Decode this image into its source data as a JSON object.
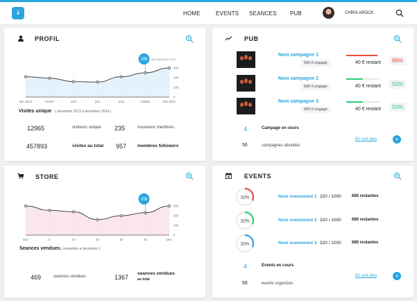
{
  "header": {
    "logo": "↓",
    "nav": [
      "HOME",
      "EVENTS",
      "SEANCES",
      "PUB"
    ],
    "user": "CHRIS AROCK",
    "search_icon": "search-icon"
  },
  "profil": {
    "title": "PROFIL",
    "icon": "user-icon",
    "tooltip_value": "208",
    "tooltip_date": "08 Septembre 2013",
    "chart_caption": "Visites unique",
    "chart_range": "( decembre 2013 a decembre 2014 )",
    "stats": [
      {
        "value": "12965",
        "label": "visiteurs unique",
        "bold": false
      },
      {
        "value": "235",
        "label": "nouveaux membres",
        "bold": false
      },
      {
        "value": "457893",
        "label": "visites au total",
        "bold": true
      },
      {
        "value": "957",
        "label": "membres followers",
        "bold": true
      }
    ]
  },
  "store": {
    "title": "STORE",
    "icon": "cart-icon",
    "tooltip_value": "208",
    "chart_caption": "Seances vendues",
    "chart_range": "( novembre a decembre )",
    "stats": [
      {
        "value": "469",
        "label": "seances vendues",
        "bold": false
      },
      {
        "value": "1367",
        "label": "seances vendues",
        "sublabel": "au total",
        "bold": true
      }
    ]
  },
  "pub": {
    "title": "PUB",
    "icon": "trend-icon",
    "campaigns": [
      {
        "name": "Nom campagne 1",
        "budget": "500 € engagé",
        "remaining": "40 € restant",
        "pct": "96%",
        "fill": 0.96,
        "color": "#e84c3d"
      },
      {
        "name": "Nom campagne 2",
        "budget": "500 € engagé",
        "remaining": "40 € restant",
        "pct": "50%",
        "fill": 0.5,
        "color": "#2ecc71"
      },
      {
        "name": "Nom campagne 3",
        "budget": "500 € engagé",
        "remaining": "40 € restant",
        "pct": "50%",
        "fill": 0.5,
        "color": "#2ecc71"
      }
    ],
    "running_count": "4",
    "running_label": "Campage en cours",
    "done_count": "56",
    "done_label": "campagnes abouties",
    "more_link": "En voir plus",
    "plus": "+"
  },
  "events": {
    "title": "EVENTS",
    "icon": "calendar-icon",
    "items": [
      {
        "pct_label": "32%",
        "fill": 0.32,
        "color": "#e84c3d",
        "name": "Nom evenement 1",
        "count": "320 / 1000",
        "left": "680 restantes"
      },
      {
        "pct_label": "32%",
        "fill": 0.32,
        "color": "#2ecc71",
        "name": "Nom evenement 2",
        "count": "320 / 1000",
        "left": "680 restantes"
      },
      {
        "pct_label": "32%",
        "fill": 0.32,
        "color": "#2aa5e0",
        "name": "Nom evenement 3",
        "count": "320 / 1000",
        "left": "680 restantes"
      }
    ],
    "running_count": "4",
    "running_label": "Events en cours",
    "done_count": "56",
    "done_label": "events organizes",
    "more_link": "En voir plus",
    "plus": "+"
  },
  "chart_data": [
    {
      "type": "area",
      "title": "Visites unique",
      "categories": [
        "Dec 2013",
        "Fevrier",
        "avril",
        "juin",
        "aout",
        "octobre",
        "Dec 2014"
      ],
      "values": [
        210,
        195,
        160,
        155,
        210,
        250,
        300
      ],
      "ylim": [
        0,
        300
      ],
      "yticks": [
        0,
        100,
        200,
        300
      ],
      "color": "#2aa5e0",
      "fill": "#e3f2fb"
    },
    {
      "type": "area",
      "title": "Seances vendues",
      "categories": [
        "Nov",
        "5",
        "10",
        "15",
        "20",
        "25",
        "Dec"
      ],
      "values": [
        300,
        255,
        240,
        160,
        200,
        230,
        300
      ],
      "ylim": [
        0,
        300
      ],
      "yticks": [
        0,
        100,
        200,
        300
      ],
      "color": "#333333",
      "fill": "#fbe5ef"
    }
  ]
}
